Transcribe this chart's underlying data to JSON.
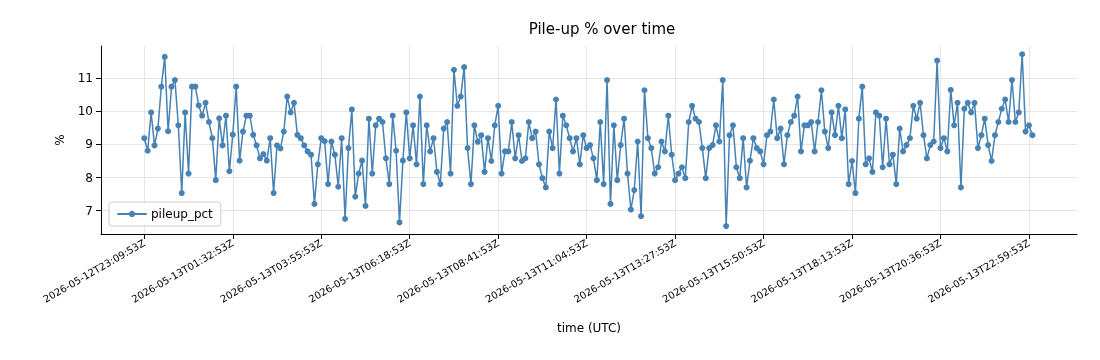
{
  "chart_data": {
    "type": "line",
    "title": "Pile-up % over time",
    "xlabel": "time (UTC)",
    "ylabel": "%",
    "x": [
      "2026-05-12T23:09:53",
      "2026-05-12T23:15:23",
      "2026-05-12T23:20:53",
      "2026-05-12T23:26:23",
      "2026-05-12T23:31:53",
      "2026-05-12T23:37:23",
      "2026-05-12T23:42:53",
      "2026-05-12T23:48:23",
      "2026-05-12T23:53:53",
      "2026-05-12T23:59:23",
      "2026-05-13T00:04:53",
      "2026-05-13T00:10:23",
      "2026-05-13T00:15:53",
      "2026-05-13T00:21:23",
      "2026-05-13T00:26:53",
      "2026-05-13T00:32:23",
      "2026-05-13T00:37:53",
      "2026-05-13T00:43:23",
      "2026-05-13T00:48:53",
      "2026-05-13T00:54:23",
      "2026-05-13T00:59:53",
      "2026-05-13T01:05:23",
      "2026-05-13T01:10:53",
      "2026-05-13T01:16:23",
      "2026-05-13T01:21:53",
      "2026-05-13T01:27:23",
      "2026-05-13T01:32:53",
      "2026-05-13T01:38:23",
      "2026-05-13T01:43:53",
      "2026-05-13T01:49:23",
      "2026-05-13T01:54:53",
      "2026-05-13T02:00:23",
      "2026-05-13T02:05:53",
      "2026-05-13T02:11:23",
      "2026-05-13T02:16:53",
      "2026-05-13T02:22:23",
      "2026-05-13T02:27:53",
      "2026-05-13T02:33:23",
      "2026-05-13T02:38:53",
      "2026-05-13T02:44:23",
      "2026-05-13T02:49:53",
      "2026-05-13T02:55:23",
      "2026-05-13T03:00:53",
      "2026-05-13T03:06:23",
      "2026-05-13T03:11:53",
      "2026-05-13T03:17:23",
      "2026-05-13T03:22:53",
      "2026-05-13T03:28:23",
      "2026-05-13T03:33:53",
      "2026-05-13T03:39:23",
      "2026-05-13T03:44:53",
      "2026-05-13T03:50:23",
      "2026-05-13T03:55:53",
      "2026-05-13T04:01:23",
      "2026-05-13T04:06:53",
      "2026-05-13T04:12:23",
      "2026-05-13T04:17:53",
      "2026-05-13T04:23:23",
      "2026-05-13T04:28:53",
      "2026-05-13T04:34:23",
      "2026-05-13T04:39:53",
      "2026-05-13T04:45:23",
      "2026-05-13T04:50:53",
      "2026-05-13T04:56:23",
      "2026-05-13T05:01:53",
      "2026-05-13T05:07:23",
      "2026-05-13T05:12:53",
      "2026-05-13T05:18:23",
      "2026-05-13T05:23:53",
      "2026-05-13T05:29:23",
      "2026-05-13T05:34:53",
      "2026-05-13T05:40:23",
      "2026-05-13T05:45:53",
      "2026-05-13T05:51:23",
      "2026-05-13T05:56:53",
      "2026-05-13T06:02:23",
      "2026-05-13T06:07:53",
      "2026-05-13T06:13:23",
      "2026-05-13T06:18:53",
      "2026-05-13T06:24:23",
      "2026-05-13T06:29:53",
      "2026-05-13T06:35:23",
      "2026-05-13T06:40:53",
      "2026-05-13T06:46:23",
      "2026-05-13T06:51:53",
      "2026-05-13T06:57:23",
      "2026-05-13T07:02:53",
      "2026-05-13T07:08:23",
      "2026-05-13T07:13:53",
      "2026-05-13T07:19:23",
      "2026-05-13T07:24:53",
      "2026-05-13T07:30:23",
      "2026-05-13T07:35:53",
      "2026-05-13T07:41:23",
      "2026-05-13T07:46:53",
      "2026-05-13T07:52:23",
      "2026-05-13T07:57:53",
      "2026-05-13T08:03:23",
      "2026-05-13T08:08:53",
      "2026-05-13T08:14:23",
      "2026-05-13T08:19:53",
      "2026-05-13T08:25:23",
      "2026-05-13T08:30:53",
      "2026-05-13T08:36:23",
      "2026-05-13T08:41:53",
      "2026-05-13T08:47:23",
      "2026-05-13T08:52:53",
      "2026-05-13T08:58:23",
      "2026-05-13T09:03:53",
      "2026-05-13T09:09:23",
      "2026-05-13T09:14:53",
      "2026-05-13T09:20:23",
      "2026-05-13T09:25:53",
      "2026-05-13T09:31:23",
      "2026-05-13T09:36:53",
      "2026-05-13T09:42:23",
      "2026-05-13T09:47:53",
      "2026-05-13T09:53:23",
      "2026-05-13T09:58:53",
      "2026-05-13T10:04:23",
      "2026-05-13T10:09:53",
      "2026-05-13T10:15:23",
      "2026-05-13T10:20:53",
      "2026-05-13T10:26:23",
      "2026-05-13T10:31:53",
      "2026-05-13T10:37:23",
      "2026-05-13T10:42:53",
      "2026-05-13T10:48:23",
      "2026-05-13T10:53:53",
      "2026-05-13T10:59:23",
      "2026-05-13T11:04:53",
      "2026-05-13T11:10:23",
      "2026-05-13T11:15:53",
      "2026-05-13T11:21:23",
      "2026-05-13T11:26:53",
      "2026-05-13T11:32:23",
      "2026-05-13T11:37:53",
      "2026-05-13T11:43:23",
      "2026-05-13T11:48:53",
      "2026-05-13T11:54:23",
      "2026-05-13T11:59:53",
      "2026-05-13T12:05:23",
      "2026-05-13T12:10:53",
      "2026-05-13T12:16:23",
      "2026-05-13T12:21:53",
      "2026-05-13T12:27:23",
      "2026-05-13T12:32:53",
      "2026-05-13T12:38:23",
      "2026-05-13T12:43:53",
      "2026-05-13T12:49:23",
      "2026-05-13T12:54:53",
      "2026-05-13T13:00:23",
      "2026-05-13T13:05:53",
      "2026-05-13T13:11:23",
      "2026-05-13T13:16:53",
      "2026-05-13T13:22:23",
      "2026-05-13T13:27:53",
      "2026-05-13T13:33:23",
      "2026-05-13T13:38:53",
      "2026-05-13T13:44:23",
      "2026-05-13T13:49:53",
      "2026-05-13T13:55:23",
      "2026-05-13T14:00:53",
      "2026-05-13T14:06:23",
      "2026-05-13T14:11:53",
      "2026-05-13T14:17:23",
      "2026-05-13T14:22:53",
      "2026-05-13T14:28:23",
      "2026-05-13T14:33:53",
      "2026-05-13T14:39:23",
      "2026-05-13T14:44:53",
      "2026-05-13T14:50:23",
      "2026-05-13T14:55:53",
      "2026-05-13T15:01:23",
      "2026-05-13T15:06:53",
      "2026-05-13T15:12:23",
      "2026-05-13T15:17:53",
      "2026-05-13T15:23:23",
      "2026-05-13T15:28:53",
      "2026-05-13T15:34:23",
      "2026-05-13T15:39:53",
      "2026-05-13T15:45:23",
      "2026-05-13T15:50:53",
      "2026-05-13T15:56:23",
      "2026-05-13T16:01:53",
      "2026-05-13T16:07:23",
      "2026-05-13T16:12:53",
      "2026-05-13T16:18:23",
      "2026-05-13T16:23:53",
      "2026-05-13T16:29:23",
      "2026-05-13T16:34:53",
      "2026-05-13T16:40:23",
      "2026-05-13T16:45:53",
      "2026-05-13T16:51:23",
      "2026-05-13T16:56:53",
      "2026-05-13T17:02:23",
      "2026-05-13T17:07:53",
      "2026-05-13T17:13:23",
      "2026-05-13T17:18:53",
      "2026-05-13T17:24:23",
      "2026-05-13T17:29:53",
      "2026-05-13T17:35:23",
      "2026-05-13T17:40:53",
      "2026-05-13T17:46:23",
      "2026-05-13T17:51:53",
      "2026-05-13T17:57:23",
      "2026-05-13T18:02:53",
      "2026-05-13T18:08:23",
      "2026-05-13T18:13:53",
      "2026-05-13T18:19:23",
      "2026-05-13T18:24:53",
      "2026-05-13T18:30:23",
      "2026-05-13T18:35:53",
      "2026-05-13T18:41:23",
      "2026-05-13T18:46:53",
      "2026-05-13T18:52:23",
      "2026-05-13T18:57:53",
      "2026-05-13T19:03:23",
      "2026-05-13T19:08:53",
      "2026-05-13T19:14:23",
      "2026-05-13T19:19:53",
      "2026-05-13T19:25:23",
      "2026-05-13T19:30:53",
      "2026-05-13T19:36:23",
      "2026-05-13T19:41:53",
      "2026-05-13T19:47:23",
      "2026-05-13T19:52:53",
      "2026-05-13T19:58:23",
      "2026-05-13T20:03:53",
      "2026-05-13T20:09:23",
      "2026-05-13T20:14:53",
      "2026-05-13T20:20:23",
      "2026-05-13T20:25:53",
      "2026-05-13T20:31:23",
      "2026-05-13T20:36:53",
      "2026-05-13T20:42:23",
      "2026-05-13T20:47:53",
      "2026-05-13T20:53:23",
      "2026-05-13T20:58:53",
      "2026-05-13T21:04:23",
      "2026-05-13T21:09:53",
      "2026-05-13T21:15:23",
      "2026-05-13T21:20:53",
      "2026-05-13T21:26:23",
      "2026-05-13T21:31:53",
      "2026-05-13T21:37:23",
      "2026-05-13T21:42:53",
      "2026-05-13T21:48:23",
      "2026-05-13T21:53:53",
      "2026-05-13T21:59:23",
      "2026-05-13T22:04:53",
      "2026-05-13T22:10:23",
      "2026-05-13T22:15:53",
      "2026-05-13T22:21:23",
      "2026-05-13T22:26:53",
      "2026-05-13T22:32:23",
      "2026-05-13T22:37:53",
      "2026-05-13T22:43:23",
      "2026-05-13T22:48:53",
      "2026-05-13T22:54:23",
      "2026-05-13T22:59:53",
      "2026-05-13T23:05:23"
    ],
    "series": [
      {
        "name": "pileup_pct",
        "color": "#4682b4",
        "values": [
          9.19,
          8.81,
          9.97,
          8.97,
          9.48,
          10.75,
          11.65,
          9.4,
          10.75,
          10.95,
          9.58,
          7.53,
          9.97,
          8.12,
          10.75,
          10.75,
          10.18,
          9.87,
          10.26,
          9.68,
          9.19,
          7.92,
          9.79,
          8.97,
          9.87,
          8.19,
          9.3,
          10.75,
          8.51,
          9.39,
          9.87,
          9.87,
          9.29,
          8.97,
          8.58,
          8.71,
          8.51,
          9.19,
          7.53,
          8.97,
          8.88,
          9.39,
          10.45,
          9.97,
          10.26,
          9.29,
          9.19,
          8.97,
          8.79,
          8.69,
          7.2,
          8.4,
          9.19,
          9.1,
          7.8,
          9.09,
          8.69,
          7.72,
          9.19,
          6.75,
          8.89,
          10.06,
          7.42,
          8.12,
          8.51,
          7.14,
          9.78,
          8.12,
          9.58,
          9.78,
          9.68,
          8.58,
          7.8,
          9.87,
          8.81,
          6.64,
          8.51,
          9.97,
          8.58,
          9.58,
          8.4,
          10.45,
          7.8,
          9.58,
          8.79,
          9.19,
          8.17,
          7.8,
          9.48,
          9.68,
          8.12,
          11.26,
          10.17,
          10.45,
          11.34,
          8.89,
          7.8,
          9.58,
          9.08,
          9.28,
          8.17,
          9.19,
          8.5,
          9.58,
          10.17,
          8.12,
          8.79,
          8.79,
          9.68,
          8.58,
          9.28,
          8.5,
          8.58,
          9.68,
          9.19,
          9.39,
          8.4,
          7.98,
          7.7,
          9.39,
          8.89,
          10.36,
          8.12,
          9.87,
          9.58,
          9.19,
          8.79,
          9.19,
          8.4,
          9.28,
          8.89,
          8.98,
          8.58,
          7.92,
          9.68,
          7.8,
          10.95,
          7.2,
          9.58,
          7.92,
          8.98,
          9.78,
          8.12,
          7.03,
          7.62,
          9.09,
          6.83,
          10.64,
          9.19,
          8.89,
          8.12,
          8.31,
          9.09,
          8.79,
          9.87,
          8.69,
          7.92,
          8.12,
          8.31,
          7.98,
          9.68,
          10.17,
          9.78,
          9.68,
          8.89,
          7.98,
          8.89,
          8.98,
          9.58,
          9.09,
          10.95,
          6.53,
          9.28,
          9.58,
          8.31,
          7.98,
          9.19,
          7.7,
          8.51,
          9.19,
          8.89,
          8.79,
          8.4,
          9.28,
          9.39,
          10.36,
          9.19,
          9.48,
          8.4,
          9.28,
          9.68,
          9.87,
          10.45,
          8.79,
          9.58,
          9.58,
          9.68,
          8.79,
          9.68,
          10.64,
          9.39,
          8.89,
          9.97,
          9.28,
          10.17,
          9.19,
          10.06,
          7.8,
          8.5,
          7.53,
          9.78,
          10.75,
          8.4,
          8.58,
          8.17,
          9.97,
          9.87,
          8.31,
          9.78,
          8.4,
          8.69,
          7.8,
          9.48,
          8.79,
          8.98,
          9.19,
          10.17,
          9.78,
          10.26,
          9.28,
          8.58,
          8.98,
          9.09,
          11.54,
          8.89,
          9.19,
          8.79,
          10.65,
          9.58,
          10.26,
          7.7,
          10.08,
          10.26,
          9.97,
          10.26,
          8.89,
          9.28,
          9.78,
          8.98,
          8.5,
          9.28,
          9.68,
          10.08,
          10.36,
          9.68,
          10.95,
          9.68,
          9.97,
          11.73,
          9.39,
          9.58,
          9.28
        ]
      }
    ],
    "xlim": [
      "2026-05-12T21:59:53",
      "2026-05-14T00:17:30"
    ],
    "xticks": [
      {
        "value": "2026-05-12T23:09:53",
        "label": "2026-05-12T23:09:53Z"
      },
      {
        "value": "2026-05-13T01:32:53",
        "label": "2026-05-13T01:32:53Z"
      },
      {
        "value": "2026-05-13T03:55:53",
        "label": "2026-05-13T03:55:53Z"
      },
      {
        "value": "2026-05-13T06:18:53",
        "label": "2026-05-13T06:18:53Z"
      },
      {
        "value": "2026-05-13T08:41:53",
        "label": "2026-05-13T08:41:53Z"
      },
      {
        "value": "2026-05-13T11:04:53",
        "label": "2026-05-13T11:04:53Z"
      },
      {
        "value": "2026-05-13T13:27:53",
        "label": "2026-05-13T13:27:53Z"
      },
      {
        "value": "2026-05-13T15:50:53",
        "label": "2026-05-13T15:50:53Z"
      },
      {
        "value": "2026-05-13T18:13:53",
        "label": "2026-05-13T18:13:53Z"
      },
      {
        "value": "2026-05-13T20:36:53",
        "label": "2026-05-13T20:36:53Z"
      },
      {
        "value": "2026-05-13T22:59:53",
        "label": "2026-05-13T22:59:53Z"
      }
    ],
    "ylim": [
      6.29,
      11.98
    ],
    "yticks": [
      7,
      8,
      9,
      10,
      11
    ],
    "grid": true,
    "legend": "bottom left",
    "marker": "circle",
    "line_style": "solid"
  }
}
